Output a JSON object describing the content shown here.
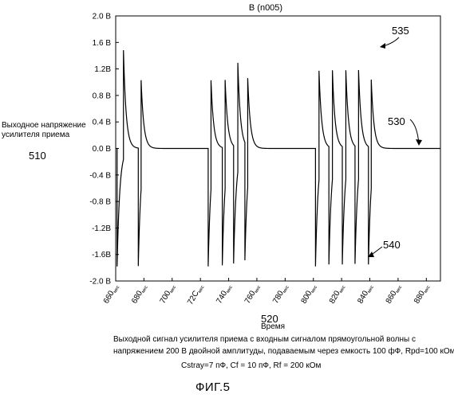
{
  "chart_data": {
    "type": "line",
    "title": "В (n005)",
    "xlabel": "Время",
    "ylabel": "Выходное напряжение усилителя приема",
    "xlim": [
      660,
      890
    ],
    "ylim": [
      -2.0,
      2.0
    ],
    "x_ticks": [
      {
        "v": 660,
        "main": "660",
        "sub": "мкс"
      },
      {
        "v": 680,
        "main": "680",
        "sub": "мкс"
      },
      {
        "v": 700,
        "main": "700",
        "sub": "мкс"
      },
      {
        "v": 720,
        "main": "72С",
        "sub": "мкс"
      },
      {
        "v": 740,
        "main": "740",
        "sub": "мкс"
      },
      {
        "v": 760,
        "main": "760",
        "sub": "мкс"
      },
      {
        "v": 780,
        "main": "780",
        "sub": "мкс"
      },
      {
        "v": 800,
        "main": "800",
        "sub": "мкс"
      },
      {
        "v": 820,
        "main": "820",
        "sub": "мкс"
      },
      {
        "v": 840,
        "main": "840",
        "sub": "мкс"
      },
      {
        "v": 860,
        "main": "860",
        "sub": "мкс"
      },
      {
        "v": 880,
        "main": "880",
        "sub": "мкс"
      }
    ],
    "y_ticks": [
      {
        "v": 2.0,
        "label": "2.0 В"
      },
      {
        "v": 1.6,
        "label": "1.6 В"
      },
      {
        "v": 1.2,
        "label": "1.2В"
      },
      {
        "v": 0.8,
        "label": "0.8 В"
      },
      {
        "v": 0.4,
        "label": "0.4 В"
      },
      {
        "v": 0.0,
        "label": "0.0 В"
      },
      {
        "v": -0.4,
        "label": "-0.4 В"
      },
      {
        "v": -0.8,
        "label": "-0.8 В"
      },
      {
        "v": -1.2,
        "label": "-1.2В"
      },
      {
        "v": -1.6,
        "label": "-1.6В"
      },
      {
        "v": -2.0,
        "label": "-2.0 В"
      }
    ],
    "series": [
      {
        "color": "#000000",
        "peak": 1.65,
        "trough": -1.78,
        "edges": [
          {
            "t": 661.0,
            "dir": -1
          },
          {
            "t": 665.5,
            "dir": 1
          },
          {
            "t": 676.0,
            "dir": -1
          },
          {
            "t": 678.0,
            "dir": 1
          },
          {
            "t": 725.5,
            "dir": -1
          },
          {
            "t": 727.5,
            "dir": 1
          },
          {
            "t": 735.5,
            "dir": -1
          },
          {
            "t": 737.5,
            "dir": 1
          },
          {
            "t": 743.5,
            "dir": -1
          },
          {
            "t": 746.5,
            "dir": 1
          },
          {
            "t": 751.5,
            "dir": -1
          },
          {
            "t": 753.5,
            "dir": 1
          },
          {
            "t": 801.5,
            "dir": -1
          },
          {
            "t": 804.0,
            "dir": 1
          },
          {
            "t": 811.0,
            "dir": -1
          },
          {
            "t": 813.5,
            "dir": 1
          },
          {
            "t": 820.5,
            "dir": -1
          },
          {
            "t": 823.0,
            "dir": 1
          },
          {
            "t": 829.5,
            "dir": -1
          },
          {
            "t": 832.0,
            "dir": 1
          },
          {
            "t": 839.0,
            "dir": -1
          },
          {
            "t": 841.0,
            "dir": 1
          }
        ]
      }
    ],
    "annotations": [
      {
        "text": "535"
      },
      {
        "text": "530"
      },
      {
        "text": "540"
      }
    ],
    "grid": false
  },
  "labels": {
    "ylabel_number": "510",
    "xlabel_number": "520",
    "caption_line1": "Выходной сигнал усилителя приема с входным сигналом прямоугольной волны с",
    "caption_line2": "напряжением 200 В двойной амплитуды, подаваемым через емкость 100 фФ, Rpd=100 кОм,",
    "caption_line3": "Cstray=7 пФ, Cf = 10 пФ, Rf = 200 кОм",
    "figure": "ФИГ.5"
  }
}
